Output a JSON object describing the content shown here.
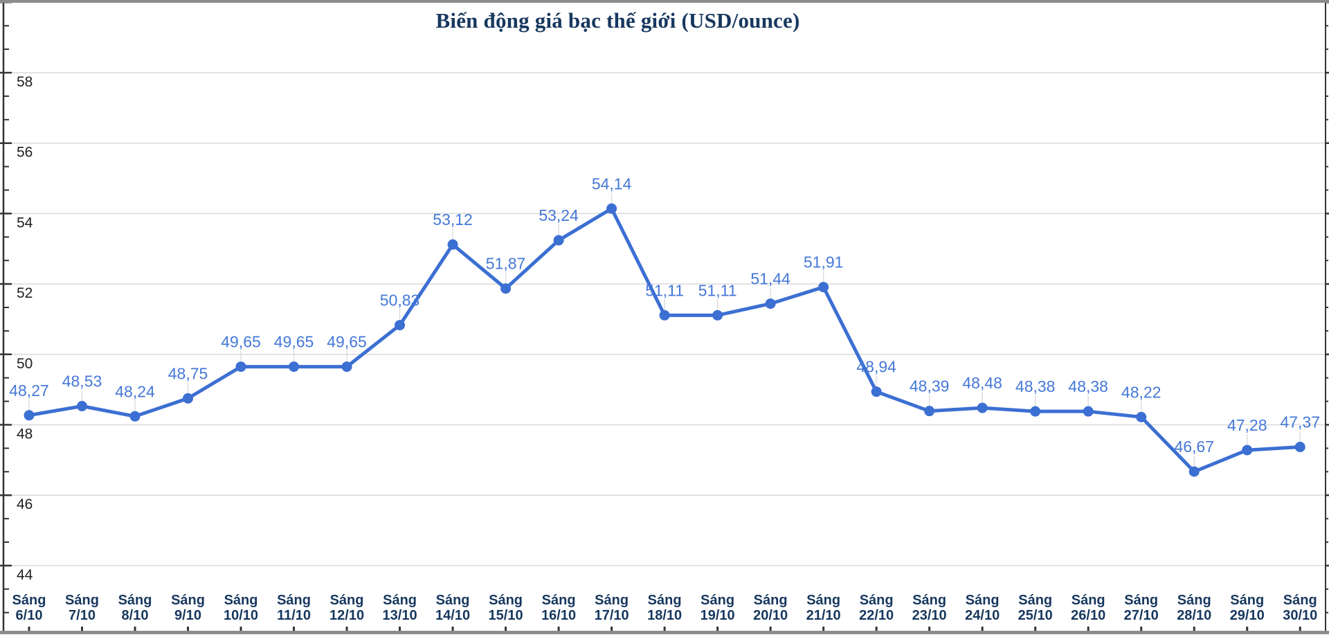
{
  "chart_data": {
    "type": "line",
    "title": "Biến động giá bạc thế giới (USD/ounce)",
    "categories": [
      "Sáng 6/10",
      "Sáng 7/10",
      "Sáng 8/10",
      "Sáng 9/10",
      "Sáng 10/10",
      "Sáng 11/10",
      "Sáng 12/10",
      "Sáng 13/10",
      "Sáng 14/10",
      "Sáng 15/10",
      "Sáng 16/10",
      "Sáng 17/10",
      "Sáng 18/10",
      "Sáng 19/10",
      "Sáng 20/10",
      "Sáng 21/10",
      "Sáng 22/10",
      "Sáng 23/10",
      "Sáng 24/10",
      "Sáng 25/10",
      "Sáng 26/10",
      "Sáng 27/10",
      "Sáng 28/10",
      "Sáng 29/10",
      "Sáng 30/10"
    ],
    "series": [
      {
        "name": "Giá bạc thế giới",
        "values": [
          48.27,
          48.53,
          48.24,
          48.75,
          49.65,
          49.65,
          49.65,
          50.83,
          53.12,
          51.87,
          53.24,
          54.14,
          51.11,
          51.11,
          51.44,
          51.91,
          48.94,
          48.39,
          48.48,
          48.38,
          48.38,
          48.22,
          46.67,
          47.28,
          47.37
        ]
      }
    ],
    "data_labels": [
      "48,27",
      "48,53",
      "48,24",
      "48,75",
      "49,65",
      "49,65",
      "49,65",
      "50,83",
      "53,12",
      "51,87",
      "53,24",
      "54,14",
      "51,11",
      "51,11",
      "51,44",
      "51,91",
      "48,94",
      "48,39",
      "48,48",
      "48,38",
      "48,38",
      "48,22",
      "46,67",
      "47,28",
      "47,37"
    ],
    "decimal_separator": ",",
    "xlabel": "",
    "ylabel": "",
    "y_ticks": [
      44,
      46,
      48,
      50,
      52,
      54,
      56,
      58
    ],
    "ylim": [
      42,
      60
    ],
    "grid": "horizontal",
    "legend": "none",
    "colors": {
      "series": "#3c6fd2",
      "point": "#3c6fd2",
      "data_label": "#4478d8",
      "title": "#17375e",
      "x_label": "#17375e",
      "y_label": "#1f1f1f",
      "gridline": "#d9d9d9",
      "leader_line": "#dcdcdc",
      "axis_line": "#333333",
      "frame_border": "#8c8c8c",
      "background": "#ffffff"
    }
  }
}
